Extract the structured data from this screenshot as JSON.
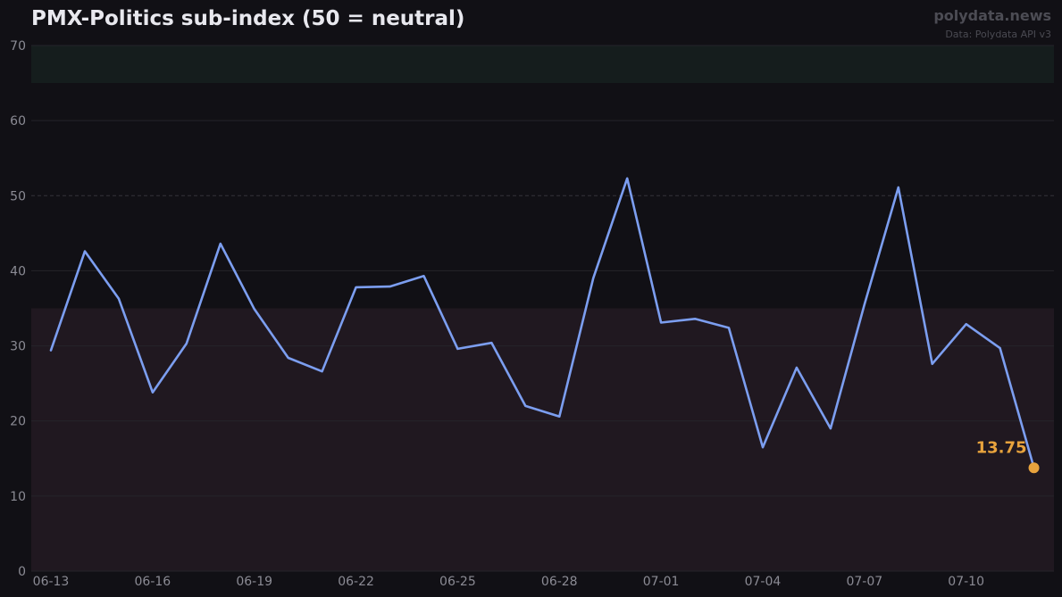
{
  "header": {
    "title": "PMX-Politics sub-index (50 = neutral)",
    "brand": "polydata.news",
    "source": "Data: Polydata API v3"
  },
  "colors": {
    "background": "#111015",
    "line": "#7c9ef0",
    "last_point": "#e8a33d",
    "upper_band": "#151d1d",
    "lower_band": "#201820",
    "grid": "#25242a",
    "neutral_line": "#34333a",
    "tick_text": "#8b8b94"
  },
  "chart_data": {
    "type": "line",
    "title": "PMX-Politics sub-index (50 = neutral)",
    "xlabel": "",
    "ylabel": "",
    "ylim": [
      0,
      70
    ],
    "yticks": [
      0,
      10,
      20,
      30,
      40,
      50,
      60,
      70
    ],
    "x_tick_labels": [
      "06-13",
      "06-16",
      "06-19",
      "06-22",
      "06-25",
      "06-28",
      "07-01",
      "07-04",
      "07-07",
      "07-10"
    ],
    "x": [
      "06-13",
      "06-14",
      "06-15",
      "06-16",
      "06-17",
      "06-18",
      "06-19",
      "06-20",
      "06-21",
      "06-22",
      "06-23",
      "06-24",
      "06-25",
      "06-26",
      "06-27",
      "06-28",
      "06-29",
      "06-30",
      "07-01",
      "07-02",
      "07-03",
      "07-04",
      "07-05",
      "07-06",
      "07-07",
      "07-08",
      "07-09",
      "07-10",
      "07-11",
      "07-12"
    ],
    "series": [
      {
        "values": [
          29.4,
          42.6,
          36.3,
          23.8,
          30.3,
          43.6,
          34.9,
          28.4,
          26.6,
          37.8,
          37.9,
          39.3,
          29.6,
          30.4,
          22.0,
          20.6,
          39.0,
          52.3,
          33.1,
          33.6,
          32.4,
          16.5,
          27.1,
          19.0,
          35.5,
          51.1,
          27.6,
          32.9,
          29.7,
          13.75
        ]
      }
    ],
    "bands": [
      {
        "from": 65,
        "to": 70,
        "color": "#151d1d"
      },
      {
        "from": 0,
        "to": 35,
        "color": "#201820"
      }
    ],
    "reference_line": 50,
    "last_value_label": "13.75",
    "grid": true,
    "legend": "none"
  }
}
